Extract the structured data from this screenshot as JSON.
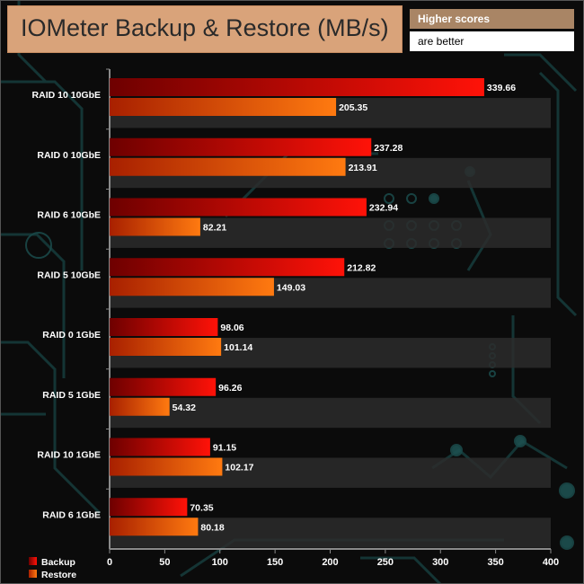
{
  "header": {
    "title": "IOMeter Backup & Restore (MB/s)",
    "note_line1": "Higher scores",
    "note_line2": "are better"
  },
  "chart_data": {
    "type": "bar",
    "orientation": "horizontal",
    "title": "IOMeter Backup & Restore (MB/s)",
    "xlabel": "",
    "ylabel": "",
    "xlim": [
      0,
      400
    ],
    "x_ticks": [
      0,
      50,
      100,
      150,
      200,
      250,
      300,
      350,
      400
    ],
    "categories": [
      "RAID 10 10GbE",
      "RAID 0 10GbE",
      "RAID 6 10GbE",
      "RAID 5 10GbE",
      "RAID 0 1GbE",
      "RAID 5 1GbE",
      "RAID 10 1GbE",
      "RAID 6 1GbE"
    ],
    "series": [
      {
        "name": "Backup",
        "color": "#e00000",
        "values": [
          339.66,
          237.28,
          232.94,
          212.82,
          98.06,
          96.26,
          91.15,
          70.35
        ]
      },
      {
        "name": "Restore",
        "color": "#ff6a00",
        "values": [
          205.35,
          213.91,
          82.21,
          149.03,
          101.14,
          54.32,
          102.17,
          80.18
        ]
      }
    ],
    "legend_position": "bottom-left",
    "grid": false
  },
  "colors": {
    "backup_dark": "#7a0000",
    "backup_light": "#ff1a0a",
    "restore_dark": "#b32400",
    "restore_light": "#ff7a10",
    "title_bg": "#d9a37a",
    "note_bg": "#a98565"
  }
}
